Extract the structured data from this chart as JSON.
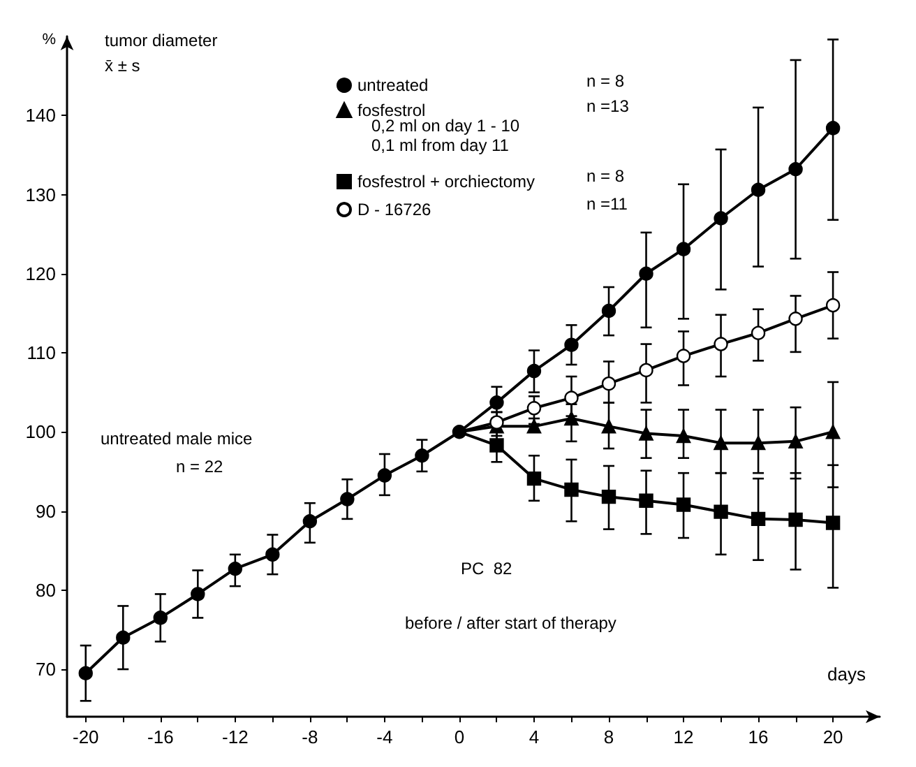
{
  "chart_data": {
    "type": "line",
    "title": "tumor diameter",
    "subtitle": "x̄ ± s",
    "ylabel": "%",
    "xlabel": "days",
    "color": "#000000",
    "xlim": [
      -21,
      22.5
    ],
    "ylim": [
      64,
      150
    ],
    "xticks": [
      -20,
      {
        "value": -18,
        "label": null
      },
      -16,
      {
        "value": -14,
        "label": null
      },
      -12,
      {
        "value": -10,
        "label": null
      },
      -8,
      {
        "value": -6,
        "label": null
      },
      -4,
      {
        "value": -2,
        "label": null
      },
      0,
      {
        "value": 2,
        "label": null
      },
      4,
      {
        "value": 6,
        "label": null
      },
      8,
      {
        "value": 10,
        "label": null
      },
      12,
      {
        "value": 14,
        "label": null
      },
      16,
      {
        "value": 18,
        "label": null
      },
      20
    ],
    "yticks": [
      70,
      80,
      90,
      100,
      110,
      120,
      130,
      140
    ],
    "grid": false,
    "legend": "top",
    "series": [
      {
        "name": "untreated",
        "color": "#000000",
        "marker": "circle",
        "x": [
          -20,
          -18,
          -16,
          -14,
          -12,
          -10,
          -8,
          -6,
          -4,
          -2,
          0,
          2,
          4,
          6,
          8,
          10,
          12,
          14,
          16,
          18,
          20
        ],
        "values": [
          69.5,
          74,
          76.5,
          79.5,
          82.7,
          84.5,
          88.7,
          91.5,
          94.5,
          97,
          100,
          103.7,
          107.7,
          111,
          115.3,
          120,
          123.1,
          127,
          130.6,
          133.2,
          138.4
        ],
        "errors": [
          [
            66,
            73
          ],
          [
            70,
            78
          ],
          [
            73.5,
            79.5
          ],
          [
            76.5,
            82.5
          ],
          [
            80.5,
            84.5
          ],
          [
            82,
            87
          ],
          [
            86,
            91
          ],
          [
            89,
            94
          ],
          [
            92,
            97.2
          ],
          [
            95,
            99
          ],
          null,
          [
            101.7,
            105.7
          ],
          [
            105,
            110.3
          ],
          [
            108.5,
            113.5
          ],
          [
            112.2,
            118.3
          ],
          [
            113.2,
            125.2
          ],
          [
            114.3,
            131.3
          ],
          [
            118,
            135.7
          ],
          [
            120.9,
            141
          ],
          [
            121.9,
            147
          ],
          [
            126.8,
            149.6
          ]
        ]
      },
      {
        "name": "fosfestrol",
        "color": "#000000",
        "marker": "triangle",
        "x": [
          0,
          2,
          4,
          6,
          8,
          10,
          12,
          14,
          16,
          18,
          20
        ],
        "values": [
          100,
          100.7,
          100.7,
          101.7,
          100.7,
          99.8,
          99.5,
          98.6,
          98.6,
          98.8,
          100
        ],
        "errors": [
          null,
          [
            99,
            102.5
          ],
          [
            100,
            101.7
          ],
          [
            98.8,
            103.5
          ],
          [
            97.9,
            103.7
          ],
          [
            96.7,
            102.8
          ],
          [
            96.7,
            102.8
          ],
          [
            94.8,
            102.8
          ],
          [
            94.8,
            102.8
          ],
          [
            94.1,
            103.1
          ],
          [
            93,
            106.3
          ]
        ]
      },
      {
        "name": "fosfestrol + orchiectomy",
        "color": "#000000",
        "marker": "square",
        "x": [
          0,
          2,
          4,
          6,
          8,
          10,
          12,
          14,
          16,
          18,
          20
        ],
        "values": [
          100,
          98.3,
          94.1,
          92.7,
          91.8,
          91.3,
          90.8,
          89.9,
          89,
          88.9,
          88.5
        ],
        "errors": [
          null,
          [
            96.2,
            100.9
          ],
          [
            91.3,
            97
          ],
          [
            88.7,
            96.5
          ],
          [
            87.7,
            95.7
          ],
          [
            87.1,
            95.1
          ],
          [
            86.6,
            94.8
          ],
          [
            84.5,
            94.8
          ],
          [
            83.8,
            94.1
          ],
          [
            82.6,
            94.8
          ],
          [
            80.3,
            95.8
          ]
        ]
      },
      {
        "name": "D - 16726",
        "color": "#ffffff",
        "marker": "circle",
        "x": [
          0,
          2,
          4,
          6,
          8,
          10,
          12,
          14,
          16,
          18,
          20
        ],
        "values": [
          100,
          101.2,
          103,
          104.3,
          106.1,
          107.8,
          109.6,
          111.1,
          112.5,
          114.3,
          116
        ],
        "errors": [
          null,
          [
            99.5,
            102.5
          ],
          [
            101,
            104.5
          ],
          [
            102,
            107
          ],
          [
            103.7,
            108.9
          ],
          [
            103.7,
            111.1
          ],
          [
            105.9,
            112.7
          ],
          [
            107,
            114.8
          ],
          [
            109,
            115.5
          ],
          [
            110.1,
            117.2
          ],
          [
            111.8,
            120.2
          ]
        ]
      }
    ],
    "annotations": [
      "0,2 ml on day 1 - 10",
      "0,1 ml from day 11",
      "n = 8",
      "n =13",
      "n = 8",
      "n =11",
      "untreated male mice",
      "n = 22",
      "PC  82",
      "before / after start of therapy"
    ]
  }
}
